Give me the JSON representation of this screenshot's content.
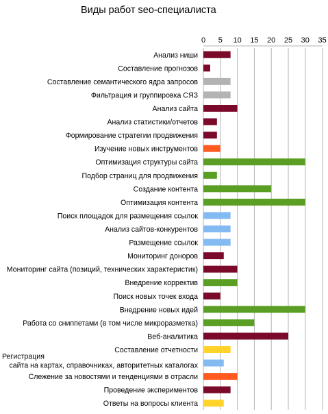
{
  "chart_data": {
    "type": "bar",
    "orientation": "horizontal",
    "title": "Виды работ seo-специалиста",
    "xlabel": "",
    "ylabel": "",
    "xlim": [
      0,
      35
    ],
    "ticks": [
      "0",
      "5",
      "10",
      "15",
      "20",
      "25",
      "30",
      "35"
    ],
    "grid": true,
    "legend": "none",
    "categories": [
      "Анализ ниши",
      "Составление прогнозов",
      "Составление семантического ядра запросов",
      "Фильтрация и группировка СЯЗ",
      "Анализ сайта",
      "Анализ статистики/отчетов",
      "Формирование стратегии продвижения",
      "Изучение новых инструментов",
      "Оптимизация структуры сайта",
      "Подбор страниц для продвижения",
      "Создание контента",
      "Оптимизация контента",
      "Поиск площадок для размещения ссылок",
      "Анализ сайтов-конкурентов",
      "Размещение ссылок",
      "Мониторинг доноров",
      "Мониторинг сайта (позиций, технических характеристик)",
      "Внедрение корректив",
      "Поиск новых точек входа",
      "Внедрение новых идей",
      "Работа со сниппетами (в том числе микроразметка)",
      "Веб-аналитика",
      "Составление отчетности",
      [
        "Регистрация",
        "сайта на картах, справочниках, авторитетных каталогах"
      ],
      "Слежение за новостями и тенденциями в отрасли",
      "Проведение экспериментов",
      "Ответы на вопросы клиента"
    ],
    "values": [
      8,
      2,
      8,
      8,
      10,
      4,
      4,
      5,
      30,
      4,
      20,
      30,
      8,
      8,
      8,
      6,
      10,
      10,
      5,
      30,
      15,
      25,
      8,
      6,
      10,
      8,
      6
    ],
    "colors": [
      "#7b0a2a",
      "#7b0a2a",
      "#b3b3b3",
      "#b3b3b3",
      "#7b0a2a",
      "#7b0a2a",
      "#7b0a2a",
      "#ff5a1f",
      "#5a9e23",
      "#5a9e23",
      "#5a9e23",
      "#5a9e23",
      "#84baf2",
      "#84baf2",
      "#84baf2",
      "#7b0a2a",
      "#7b0a2a",
      "#5a9e23",
      "#7b0a2a",
      "#5a9e23",
      "#5a9e23",
      "#7b0a2a",
      "#ffd32a",
      "#84baf2",
      "#ff5a1f",
      "#7b0a2a",
      "#ffd32a"
    ],
    "grid_color": "#b3b3b3",
    "axis_color": "#b3b3b3"
  }
}
